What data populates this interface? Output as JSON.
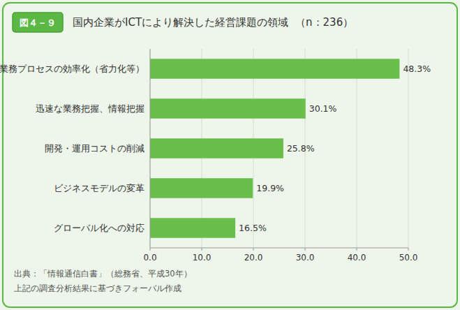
{
  "chart_data": {
    "type": "bar",
    "orientation": "horizontal",
    "title": "国内企業がICTにより解決した経営課題の領域",
    "subtitle": "（n：236）",
    "annotations": [
      "図４－９",
      "出典：「情報通信白書」（総務省、平成30年）",
      "上記の調査分析結果に基づきフォーバル作成"
    ],
    "categories": [
      "業務プロセスの効率化（省力化等）",
      "迅速な業務把握、情報把握",
      "開発・運用コストの削減",
      "ビジネスモデルの変革",
      "グローバル化への対応"
    ],
    "values": [
      48.3,
      30.1,
      25.8,
      19.9,
      16.5
    ],
    "value_labels": [
      "48.3%",
      "30.1%",
      "25.8%",
      "19.9%",
      "16.5%"
    ],
    "data_labels": true,
    "color": "#6abf4b",
    "xlim": [
      0,
      50
    ],
    "xticks": [
      {
        "value": 0,
        "label": "0.0"
      },
      {
        "value": 10,
        "label": "10.0"
      },
      {
        "value": 20,
        "label": "20.0"
      },
      {
        "value": 30,
        "label": "30.0"
      },
      {
        "value": 40,
        "label": "40.0"
      },
      {
        "value": 50,
        "label": "50.0"
      }
    ],
    "grid": true
  }
}
